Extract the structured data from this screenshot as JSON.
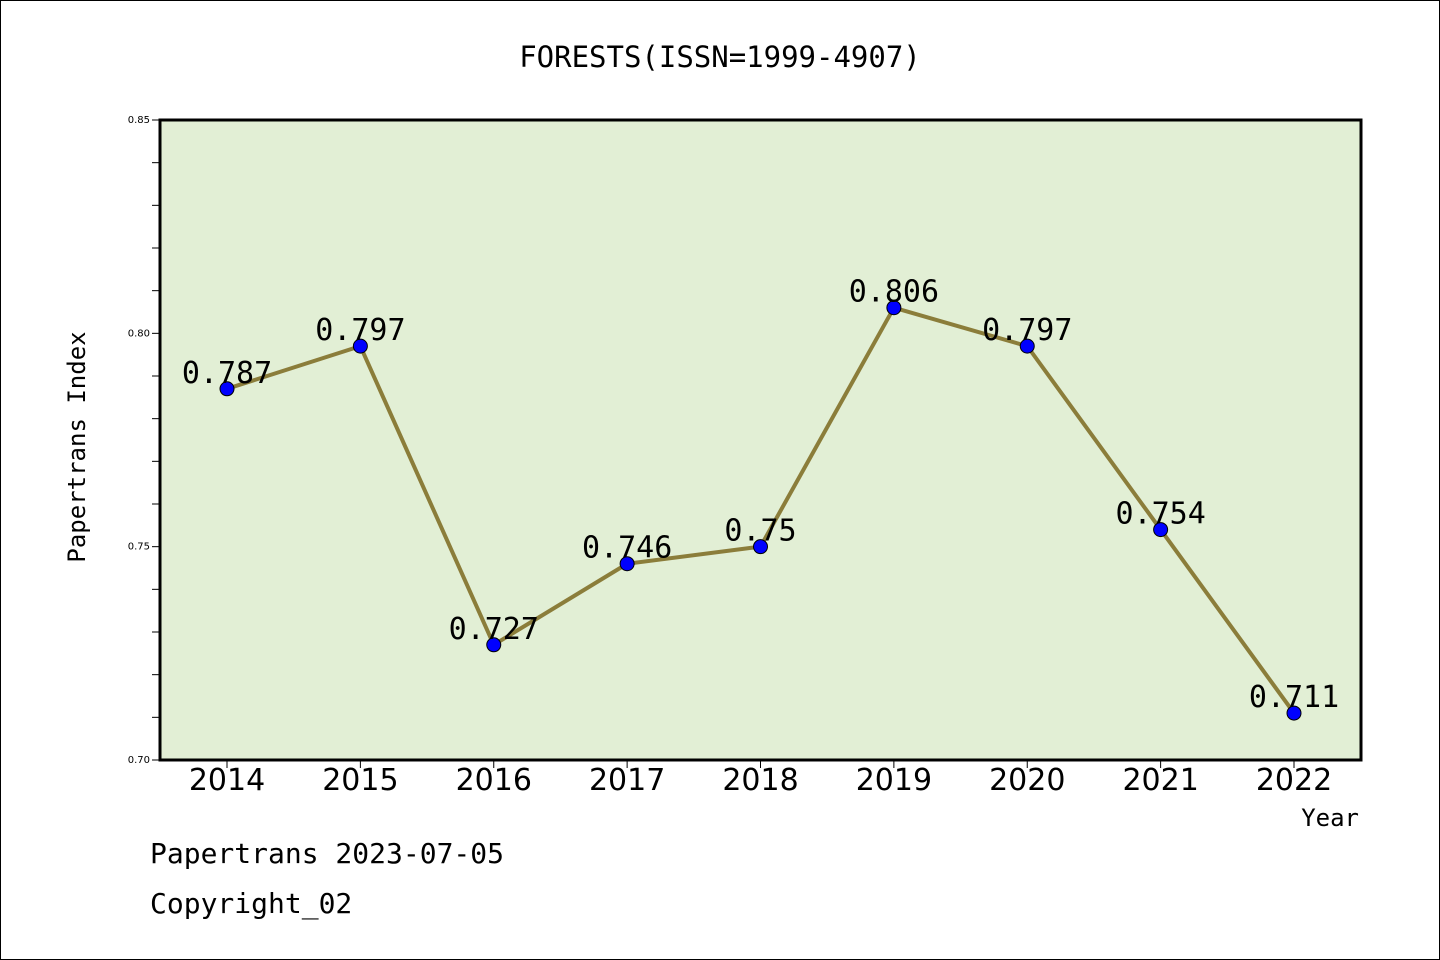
{
  "chart_data": {
    "type": "line",
    "title": "FORESTS(ISSN=1999-4907)",
    "xlabel": "Year",
    "ylabel": "Papertrans Index",
    "x": [
      "2014",
      "2015",
      "2016",
      "2017",
      "2018",
      "2019",
      "2020",
      "2021",
      "2022"
    ],
    "values": [
      0.787,
      0.797,
      0.727,
      0.746,
      0.75,
      0.806,
      0.797,
      0.754,
      0.711
    ],
    "value_labels": [
      "0.787",
      "0.797",
      "0.727",
      "0.746",
      "0.75",
      "0.806",
      "0.797",
      "0.754",
      "0.711"
    ],
    "ylim": [
      0.7,
      0.85
    ],
    "yticks": [
      0.7,
      0.75,
      0.8,
      0.85
    ],
    "ytick_labels": [
      "0.70",
      "0.75",
      "0.80",
      "0.85"
    ],
    "grid": false,
    "colors": {
      "plot_background": "#e2efd5",
      "line": "#8b7d3a",
      "marker": "#0000ff"
    }
  },
  "footer": {
    "line1": "Papertrans 2023-07-05",
    "line2": "Copyright_02"
  }
}
